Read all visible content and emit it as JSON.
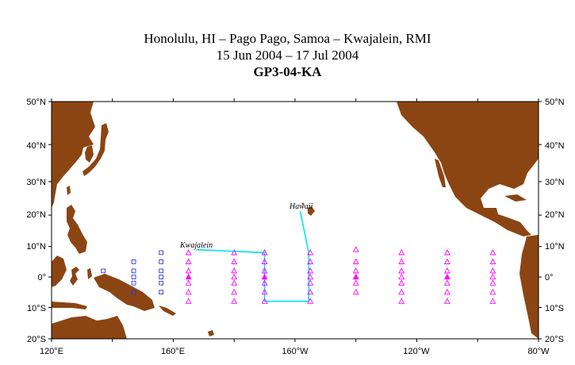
{
  "header": {
    "line1": "Honolulu, HI – Pago Pago, Samoa – Kwajalein, RMI",
    "line2": "15 Jun 2004 – 17 Jul 2004",
    "line3": "GP3-04-KA"
  },
  "map": {
    "projection": "Mercator",
    "lon_range": [
      120,
      280
    ],
    "lat_range": [
      -20,
      50
    ],
    "ocean_color": "#ffffff",
    "land_color": "#8b4513",
    "track_color": "#00e5ee",
    "triangle_color": "#ff00ff",
    "square_color": "#3333cc",
    "lat_labels": [
      "50°N",
      "40°N",
      "30°N",
      "20°N",
      "10°N",
      "0°",
      "10°S",
      "20°S"
    ],
    "lon_labels": [
      "120°E",
      "160°E",
      "160°W",
      "120°W",
      "80°W"
    ],
    "place_labels": {
      "hawaii": "Hawaii",
      "kwajalein": "Kwajalein"
    },
    "ship_track": [
      {
        "lon": 201.7,
        "lat": 21.2
      },
      {
        "lon": 204.5,
        "lat": 8
      },
      {
        "lon": 204.5,
        "lat": -8
      },
      {
        "lon": 190,
        "lat": -8
      },
      {
        "lon": 190,
        "lat": 8
      },
      {
        "lon": 167.5,
        "lat": 9
      }
    ],
    "buoy_lines": [
      {
        "lon": 137,
        "type": "square",
        "lats": [
          2
        ]
      },
      {
        "lon": 147,
        "type": "square",
        "lats": [
          5,
          2,
          0,
          -2,
          -5
        ]
      },
      {
        "lon": 156,
        "type": "square",
        "lats": [
          8,
          5,
          2,
          0,
          -2,
          -5
        ]
      },
      {
        "lon": 165,
        "type": "triangle",
        "lats": [
          8,
          5,
          2,
          0,
          -2,
          -5,
          -8
        ],
        "filled": [
          0
        ]
      },
      {
        "lon": 180,
        "type": "triangle",
        "lats": [
          8,
          5,
          2,
          0,
          -2,
          -5,
          -8
        ]
      },
      {
        "lon": 190,
        "type": "triangle",
        "lats": [
          8,
          5,
          2,
          0,
          -2,
          -5,
          -8
        ],
        "filled": [
          0
        ]
      },
      {
        "lon": 205,
        "type": "triangle",
        "lats": [
          8,
          5,
          2,
          0,
          -2,
          -5,
          -8
        ]
      },
      {
        "lon": 220,
        "type": "triangle",
        "lats": [
          9,
          5,
          2,
          0,
          -2,
          -5
        ],
        "filled": [
          0
        ]
      },
      {
        "lon": 235,
        "type": "triangle",
        "lats": [
          8,
          5,
          2,
          0,
          -2,
          -5,
          -8
        ]
      },
      {
        "lon": 250,
        "type": "triangle",
        "lats": [
          8,
          5,
          2,
          0,
          -2,
          -5,
          -8
        ],
        "filled": [
          0
        ]
      },
      {
        "lon": 265,
        "type": "triangle",
        "lats": [
          8,
          5,
          2,
          0,
          -2,
          -5,
          -8
        ]
      }
    ]
  }
}
